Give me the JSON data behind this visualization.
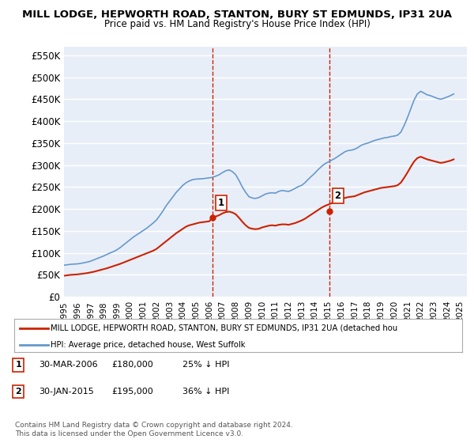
{
  "title": "MILL LODGE, HEPWORTH ROAD, STANTON, BURY ST EDMUNDS, IP31 2UA",
  "subtitle": "Price paid vs. HM Land Registry's House Price Index (HPI)",
  "ylabel_ticks": [
    "£0",
    "£50K",
    "£100K",
    "£150K",
    "£200K",
    "£250K",
    "£300K",
    "£350K",
    "£400K",
    "£450K",
    "£500K",
    "£550K"
  ],
  "ytick_values": [
    0,
    50000,
    100000,
    150000,
    200000,
    250000,
    300000,
    350000,
    400000,
    450000,
    500000,
    550000
  ],
  "ylim": [
    0,
    570000
  ],
  "xlim_start": 1995.0,
  "xlim_end": 2025.5,
  "xticks": [
    1995,
    1996,
    1997,
    1998,
    1999,
    2000,
    2001,
    2002,
    2003,
    2004,
    2005,
    2006,
    2007,
    2008,
    2009,
    2010,
    2011,
    2012,
    2013,
    2014,
    2015,
    2016,
    2017,
    2018,
    2019,
    2020,
    2021,
    2022,
    2023,
    2024,
    2025
  ],
  "background_color": "#ffffff",
  "plot_bg_color": "#e8eef8",
  "grid_color": "#ffffff",
  "hpi_color": "#6699cc",
  "price_color": "#cc2200",
  "vline_color": "#cc2200",
  "vline_style": "--",
  "sale1_year": 2006.25,
  "sale1_price": 180000,
  "sale1_label": "1",
  "sale2_year": 2015.08,
  "sale2_price": 195000,
  "sale2_label": "2",
  "legend_price_label": "MILL LODGE, HEPWORTH ROAD, STANTON, BURY ST EDMUNDS, IP31 2UA (detached hou",
  "legend_hpi_label": "HPI: Average price, detached house, West Suffolk",
  "note1_label": "1",
  "note1_date": "30-MAR-2006",
  "note1_price": "£180,000",
  "note1_hpi": "25% ↓ HPI",
  "note2_label": "2",
  "note2_date": "30-JAN-2015",
  "note2_price": "£195,000",
  "note2_hpi": "36% ↓ HPI",
  "copyright_text": "Contains HM Land Registry data © Crown copyright and database right 2024.\nThis data is licensed under the Open Government Licence v3.0.",
  "hpi_data_x": [
    1995.0,
    1995.25,
    1995.5,
    1995.75,
    1996.0,
    1996.25,
    1996.5,
    1996.75,
    1997.0,
    1997.25,
    1997.5,
    1997.75,
    1998.0,
    1998.25,
    1998.5,
    1998.75,
    1999.0,
    1999.25,
    1999.5,
    1999.75,
    2000.0,
    2000.25,
    2000.5,
    2000.75,
    2001.0,
    2001.25,
    2001.5,
    2001.75,
    2002.0,
    2002.25,
    2002.5,
    2002.75,
    2003.0,
    2003.25,
    2003.5,
    2003.75,
    2004.0,
    2004.25,
    2004.5,
    2004.75,
    2005.0,
    2005.25,
    2005.5,
    2005.75,
    2006.0,
    2006.25,
    2006.5,
    2006.75,
    2007.0,
    2007.25,
    2007.5,
    2007.75,
    2008.0,
    2008.25,
    2008.5,
    2008.75,
    2009.0,
    2009.25,
    2009.5,
    2009.75,
    2010.0,
    2010.25,
    2010.5,
    2010.75,
    2011.0,
    2011.25,
    2011.5,
    2011.75,
    2012.0,
    2012.25,
    2012.5,
    2012.75,
    2013.0,
    2013.25,
    2013.5,
    2013.75,
    2014.0,
    2014.25,
    2014.5,
    2014.75,
    2015.0,
    2015.25,
    2015.5,
    2015.75,
    2016.0,
    2016.25,
    2016.5,
    2016.75,
    2017.0,
    2017.25,
    2017.5,
    2017.75,
    2018.0,
    2018.25,
    2018.5,
    2018.75,
    2019.0,
    2019.25,
    2019.5,
    2019.75,
    2020.0,
    2020.25,
    2020.5,
    2020.75,
    2021.0,
    2021.25,
    2021.5,
    2021.75,
    2022.0,
    2022.25,
    2022.5,
    2022.75,
    2023.0,
    2023.25,
    2023.5,
    2023.75,
    2024.0,
    2024.25,
    2024.5
  ],
  "hpi_data_y": [
    72000,
    73000,
    74000,
    74500,
    75000,
    76000,
    77500,
    79000,
    81000,
    84000,
    87000,
    90000,
    93000,
    96500,
    100000,
    103000,
    107000,
    112000,
    118000,
    124000,
    130000,
    136000,
    141000,
    146000,
    151000,
    156000,
    162000,
    168000,
    175000,
    185000,
    196000,
    208000,
    218000,
    228000,
    238000,
    246000,
    254000,
    260000,
    264000,
    267000,
    268000,
    268500,
    269000,
    270000,
    271000,
    272000,
    275000,
    278000,
    283000,
    287000,
    289000,
    285000,
    278000,
    265000,
    250000,
    238000,
    228000,
    225000,
    224000,
    226000,
    230000,
    234000,
    236000,
    237000,
    236000,
    240000,
    242000,
    241000,
    240000,
    243000,
    247000,
    251000,
    254000,
    260000,
    268000,
    275000,
    282000,
    290000,
    297000,
    303000,
    307000,
    311000,
    315000,
    320000,
    325000,
    330000,
    333000,
    334000,
    336000,
    340000,
    345000,
    348000,
    350000,
    353000,
    356000,
    358000,
    360000,
    362000,
    363000,
    365000,
    366000,
    368000,
    375000,
    390000,
    408000,
    428000,
    448000,
    462000,
    468000,
    464000,
    460000,
    458000,
    455000,
    452000,
    450000,
    452000,
    455000,
    458000,
    462000
  ],
  "price_data_x": [
    1995.0,
    1995.25,
    1995.5,
    1995.75,
    1996.0,
    1996.25,
    1996.5,
    1996.75,
    1997.0,
    1997.25,
    1997.5,
    1997.75,
    1998.0,
    1998.25,
    1998.5,
    1998.75,
    1999.0,
    1999.25,
    1999.5,
    1999.75,
    2000.0,
    2000.25,
    2000.5,
    2000.75,
    2001.0,
    2001.25,
    2001.5,
    2001.75,
    2002.0,
    2002.25,
    2002.5,
    2002.75,
    2003.0,
    2003.25,
    2003.5,
    2003.75,
    2004.0,
    2004.25,
    2004.5,
    2004.75,
    2005.0,
    2005.25,
    2005.5,
    2005.75,
    2006.0,
    2006.25,
    2006.5,
    2006.75,
    2007.0,
    2007.25,
    2007.5,
    2007.75,
    2008.0,
    2008.25,
    2008.5,
    2008.75,
    2009.0,
    2009.25,
    2009.5,
    2009.75,
    2010.0,
    2010.25,
    2010.5,
    2010.75,
    2011.0,
    2011.25,
    2011.5,
    2011.75,
    2012.0,
    2012.25,
    2012.5,
    2012.75,
    2013.0,
    2013.25,
    2013.5,
    2013.75,
    2014.0,
    2014.25,
    2014.5,
    2014.75,
    2015.0,
    2015.25,
    2015.5,
    2015.75,
    2016.0,
    2016.25,
    2016.5,
    2016.75,
    2017.0,
    2017.25,
    2017.5,
    2017.75,
    2018.0,
    2018.25,
    2018.5,
    2018.75,
    2019.0,
    2019.25,
    2019.5,
    2019.75,
    2020.0,
    2020.25,
    2020.5,
    2020.75,
    2021.0,
    2021.25,
    2021.5,
    2021.75,
    2022.0,
    2022.25,
    2022.5,
    2022.75,
    2023.0,
    2023.25,
    2023.5,
    2023.75,
    2024.0,
    2024.25,
    2024.5
  ],
  "price_data_y": [
    48000,
    49000,
    50000,
    50500,
    51000,
    52000,
    53000,
    54000,
    55500,
    57000,
    59000,
    61000,
    63000,
    65000,
    67500,
    70000,
    72500,
    75000,
    78000,
    81000,
    84000,
    87000,
    90000,
    93000,
    96000,
    99000,
    102000,
    105000,
    109000,
    115000,
    121000,
    127000,
    133000,
    139000,
    145000,
    150000,
    155000,
    160000,
    163000,
    165000,
    167000,
    169000,
    170000,
    171000,
    172000,
    180000,
    183000,
    186000,
    190000,
    193000,
    194000,
    192000,
    188000,
    180000,
    171000,
    163000,
    157000,
    155000,
    154000,
    155000,
    158000,
    160000,
    162000,
    163000,
    162000,
    164000,
    165000,
    165000,
    164000,
    166000,
    168000,
    171000,
    174000,
    178000,
    183000,
    188000,
    193000,
    198000,
    203000,
    207000,
    210000,
    213000,
    216000,
    219000,
    222000,
    225000,
    227000,
    228000,
    229000,
    232000,
    235000,
    238000,
    240000,
    242000,
    244000,
    246000,
    248000,
    249000,
    250000,
    251000,
    252000,
    254000,
    260000,
    271000,
    283000,
    296000,
    308000,
    316000,
    319000,
    316000,
    313000,
    311000,
    309000,
    307000,
    305000,
    306000,
    308000,
    310000,
    313000
  ]
}
